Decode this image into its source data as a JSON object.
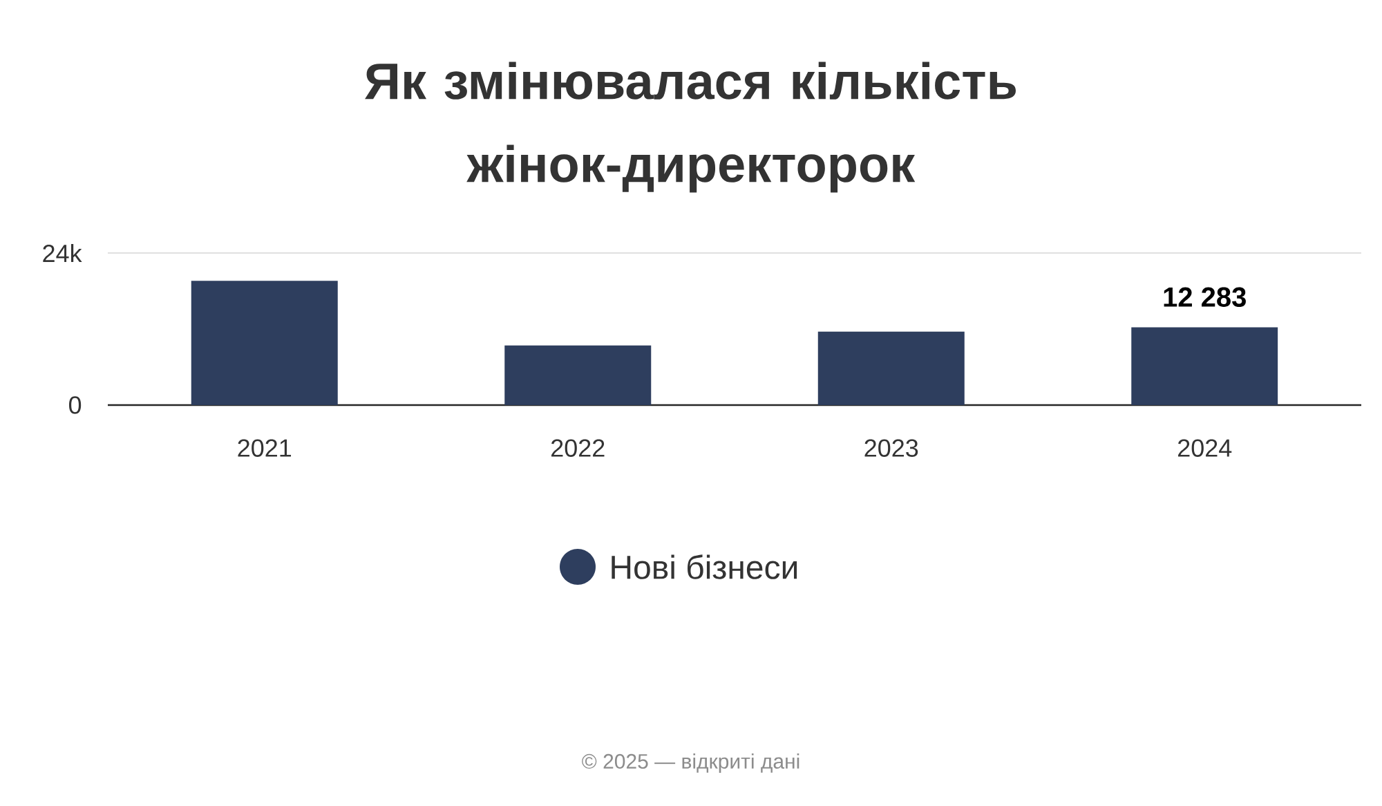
{
  "chart_data": {
    "type": "bar",
    "title": "Як змінювалася кількість жінок-директорок",
    "categories": [
      "2021",
      "2022",
      "2023",
      "2024"
    ],
    "series": [
      {
        "name": "Нові бізнеси",
        "color": "#2e3e5e",
        "values": [
          19600,
          9400,
          11600,
          12283
        ]
      }
    ],
    "value_labels": [
      null,
      null,
      null,
      "12 283"
    ],
    "ylim": [
      0,
      24000
    ],
    "yticks": [
      0,
      {
        "value": 24000,
        "label": "24k"
      }
    ],
    "grid": "y",
    "legend": "bottom",
    "marker": "circle",
    "annotations": [
      "© 2025 — відкриті дані"
    ]
  }
}
